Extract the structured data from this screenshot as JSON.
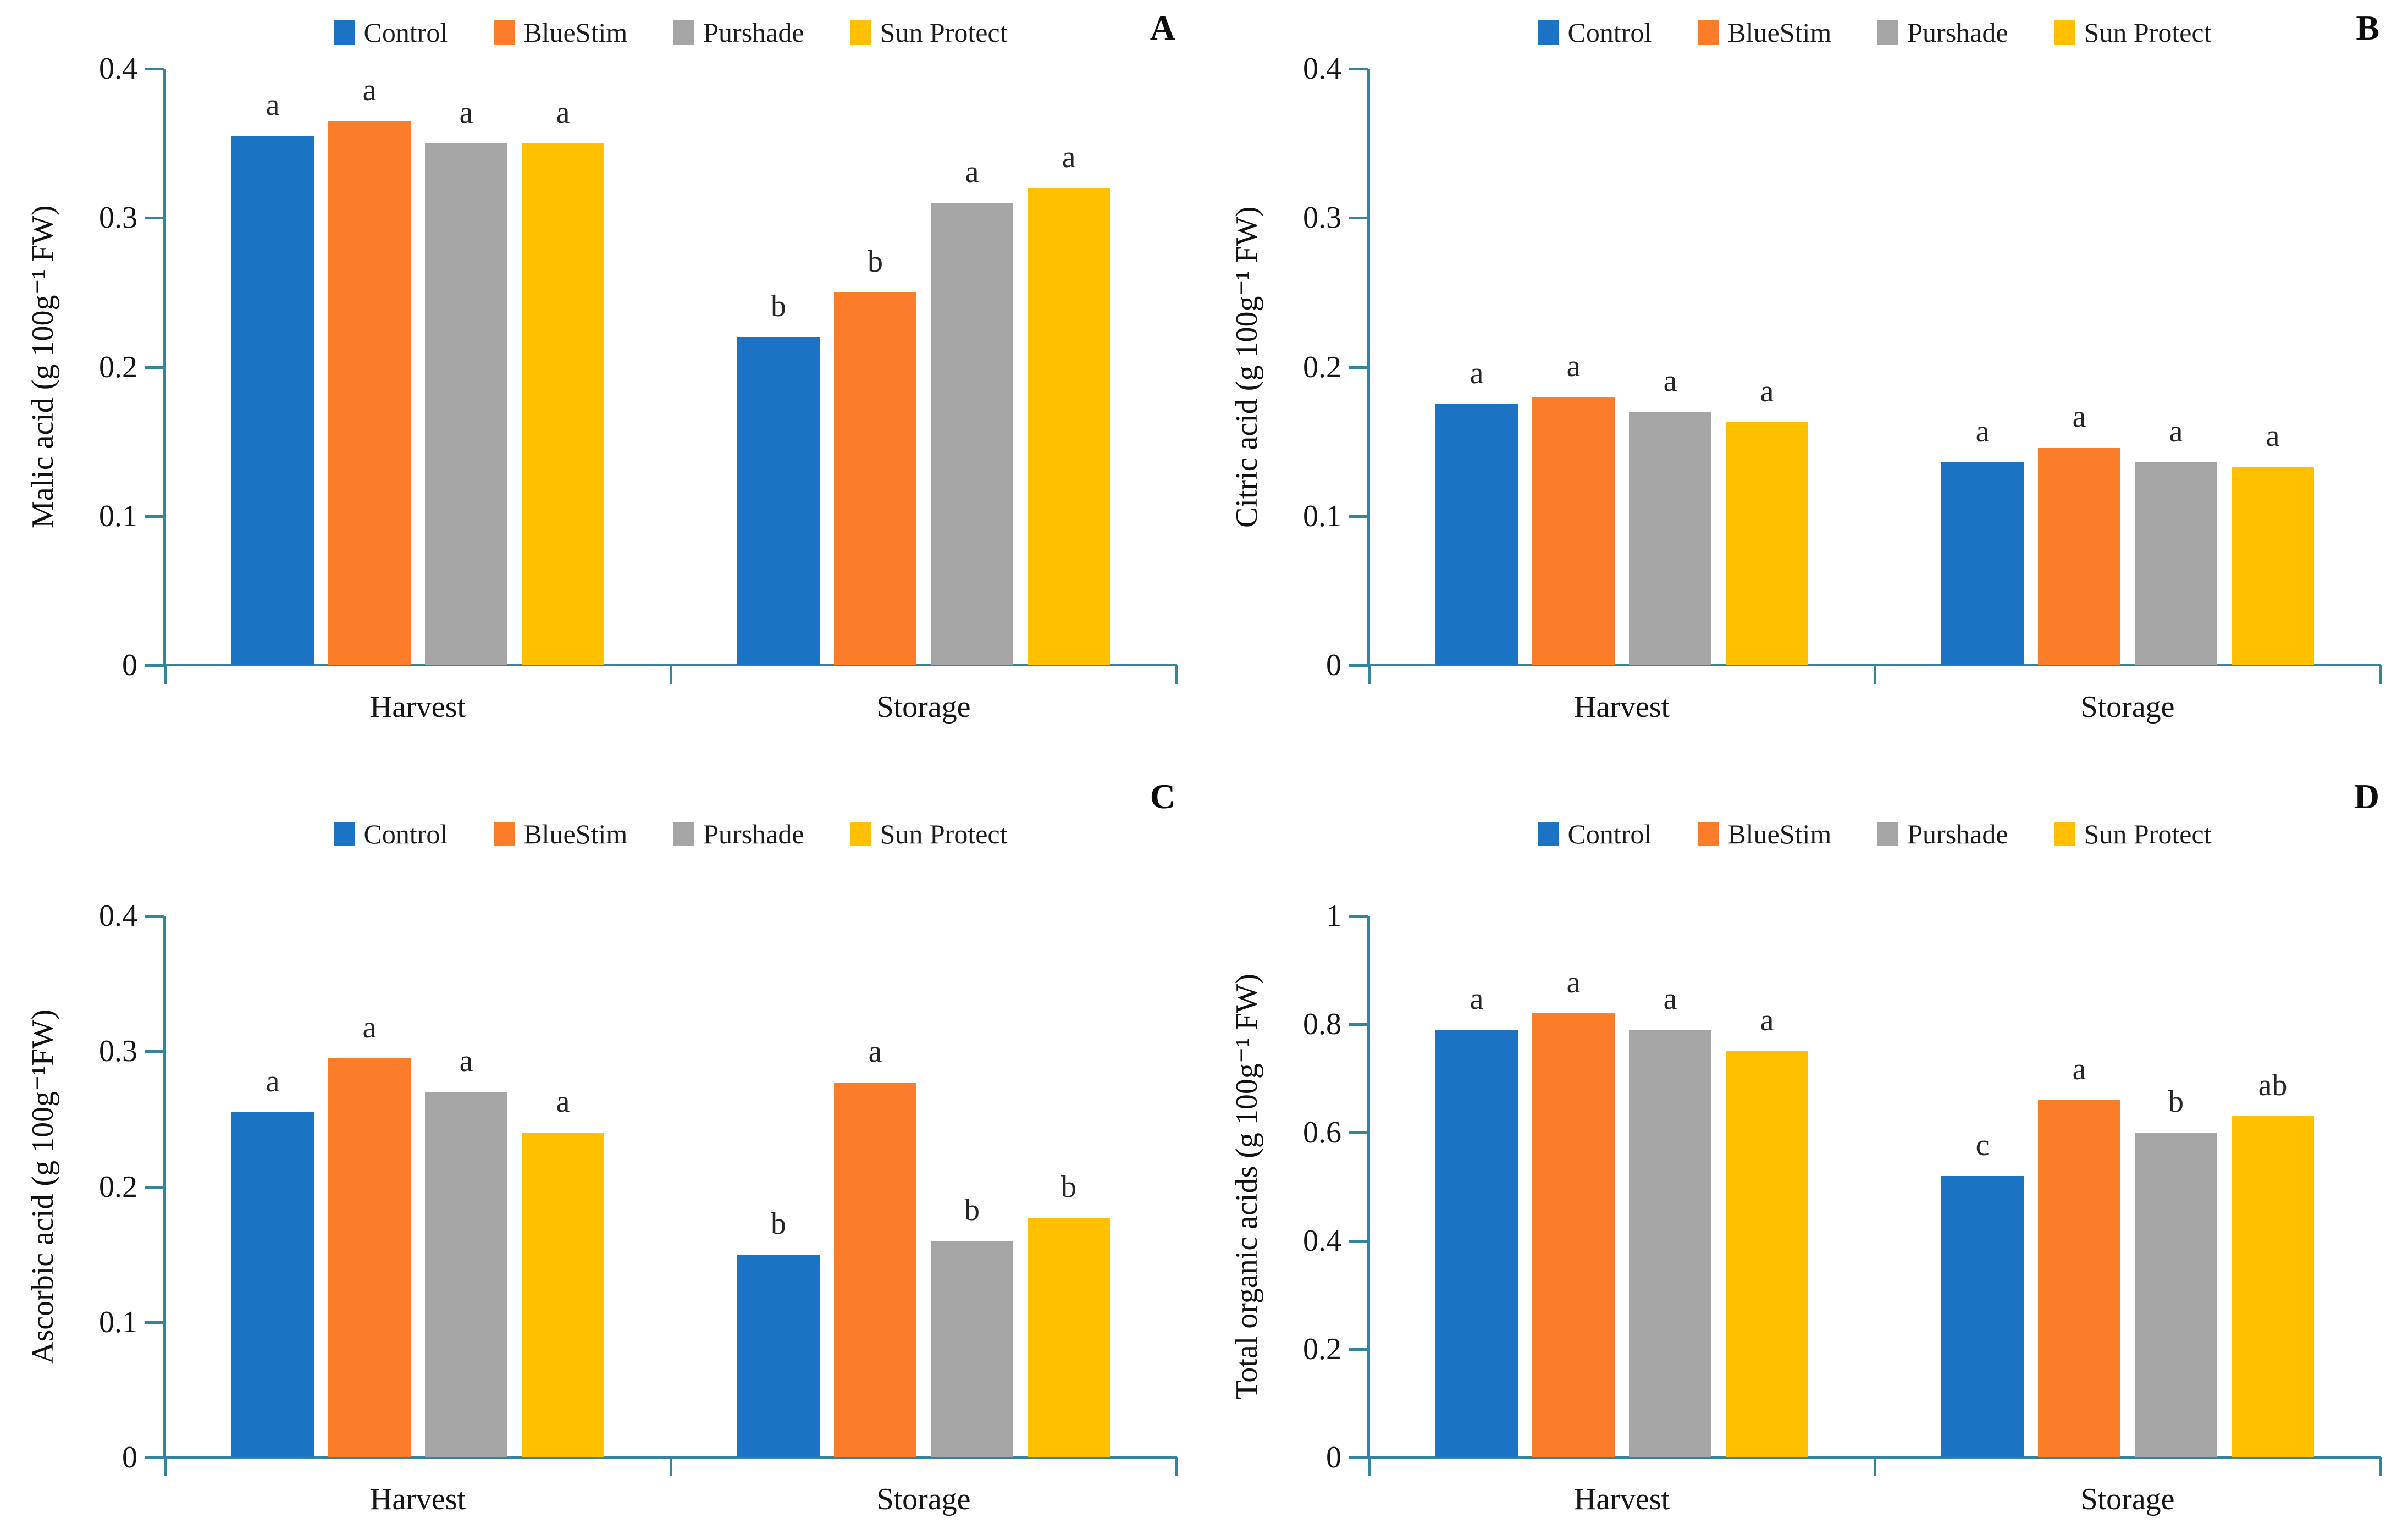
{
  "legend": {
    "items": [
      {
        "label": "Control",
        "color": "#1B73C4"
      },
      {
        "label": "BlueStim",
        "color": "#FB7D29"
      },
      {
        "label": "Purshade",
        "color": "#A5A5A5"
      },
      {
        "label": "Sun Protect",
        "color": "#FFC000"
      }
    ],
    "position": "top-center"
  },
  "style": {
    "axis_color": "#35849B",
    "text_color": "#161616",
    "background": "#FFFFFF"
  },
  "chart_data": [
    {
      "type": "bar",
      "panel_label": "A",
      "ylabel": "Malic acid (g 100g⁻¹ FW)",
      "xlabel": "",
      "ymax": 0.4,
      "ylim": [
        0,
        0.4
      ],
      "yticks": [
        "0.4",
        "0.3",
        "0.2",
        "0.1",
        "0"
      ],
      "grid": false,
      "legend_position": "top",
      "categories": [
        "Harvest",
        "Storage"
      ],
      "series": [
        {
          "name": "Control",
          "values": [
            0.355,
            0.22
          ],
          "letters": [
            "a",
            "b"
          ]
        },
        {
          "name": "BlueStim",
          "values": [
            0.365,
            0.25
          ],
          "letters": [
            "a",
            "b"
          ]
        },
        {
          "name": "Purshade",
          "values": [
            0.35,
            0.31
          ],
          "letters": [
            "a",
            "a"
          ]
        },
        {
          "name": "Sun Protect",
          "values": [
            0.35,
            0.32
          ],
          "letters": [
            "a",
            "a"
          ]
        }
      ]
    },
    {
      "type": "bar",
      "panel_label": "B",
      "ylabel": "Citric acid (g 100g⁻¹ FW)",
      "xlabel": "",
      "ymax": 0.4,
      "ylim": [
        0,
        0.4
      ],
      "yticks": [
        "0.4",
        "0.3",
        "0.2",
        "0.1",
        "0"
      ],
      "grid": false,
      "legend_position": "top",
      "categories": [
        "Harvest",
        "Storage"
      ],
      "series": [
        {
          "name": "Control",
          "values": [
            0.175,
            0.136
          ],
          "letters": [
            "a",
            "a"
          ]
        },
        {
          "name": "BlueStim",
          "values": [
            0.18,
            0.146
          ],
          "letters": [
            "a",
            "a"
          ]
        },
        {
          "name": "Purshade",
          "values": [
            0.17,
            0.136
          ],
          "letters": [
            "a",
            "a"
          ]
        },
        {
          "name": "Sun Protect",
          "values": [
            0.163,
            0.133
          ],
          "letters": [
            "a",
            "a"
          ]
        }
      ]
    },
    {
      "type": "bar",
      "panel_label": "C",
      "ylabel": "Ascorbic acid (g 100g⁻¹FW)",
      "xlabel": "",
      "ymax": 0.4,
      "ylim": [
        0,
        0.4
      ],
      "yticks": [
        "0.4",
        "0.3",
        "0.2",
        "0.1",
        "0"
      ],
      "grid": false,
      "legend_position": "top",
      "categories": [
        "Harvest",
        "Storage"
      ],
      "series": [
        {
          "name": "Control",
          "values": [
            0.255,
            0.15
          ],
          "letters": [
            "a",
            "b"
          ]
        },
        {
          "name": "BlueStim",
          "values": [
            0.295,
            0.277
          ],
          "letters": [
            "a",
            "a"
          ]
        },
        {
          "name": "Purshade",
          "values": [
            0.27,
            0.16
          ],
          "letters": [
            "a",
            "b"
          ]
        },
        {
          "name": "Sun Protect",
          "values": [
            0.24,
            0.177
          ],
          "letters": [
            "a",
            "b"
          ]
        }
      ]
    },
    {
      "type": "bar",
      "panel_label": "D",
      "ylabel": "Total organic acids (g 100g⁻¹ FW)",
      "xlabel": "",
      "ymax": 1,
      "ylim": [
        0,
        1
      ],
      "yticks": [
        "1",
        "0.8",
        "0.6",
        "0.4",
        "0.2",
        "0"
      ],
      "grid": false,
      "legend_position": "top",
      "categories": [
        "Harvest",
        "Storage"
      ],
      "series": [
        {
          "name": "Control",
          "values": [
            0.79,
            0.52
          ],
          "letters": [
            "a",
            "c"
          ]
        },
        {
          "name": "BlueStim",
          "values": [
            0.82,
            0.66
          ],
          "letters": [
            "a",
            "a"
          ]
        },
        {
          "name": "Purshade",
          "values": [
            0.79,
            0.6
          ],
          "letters": [
            "a",
            "b"
          ]
        },
        {
          "name": "Sun Protect",
          "values": [
            0.75,
            0.63
          ],
          "letters": [
            "a",
            "ab"
          ]
        }
      ]
    }
  ]
}
